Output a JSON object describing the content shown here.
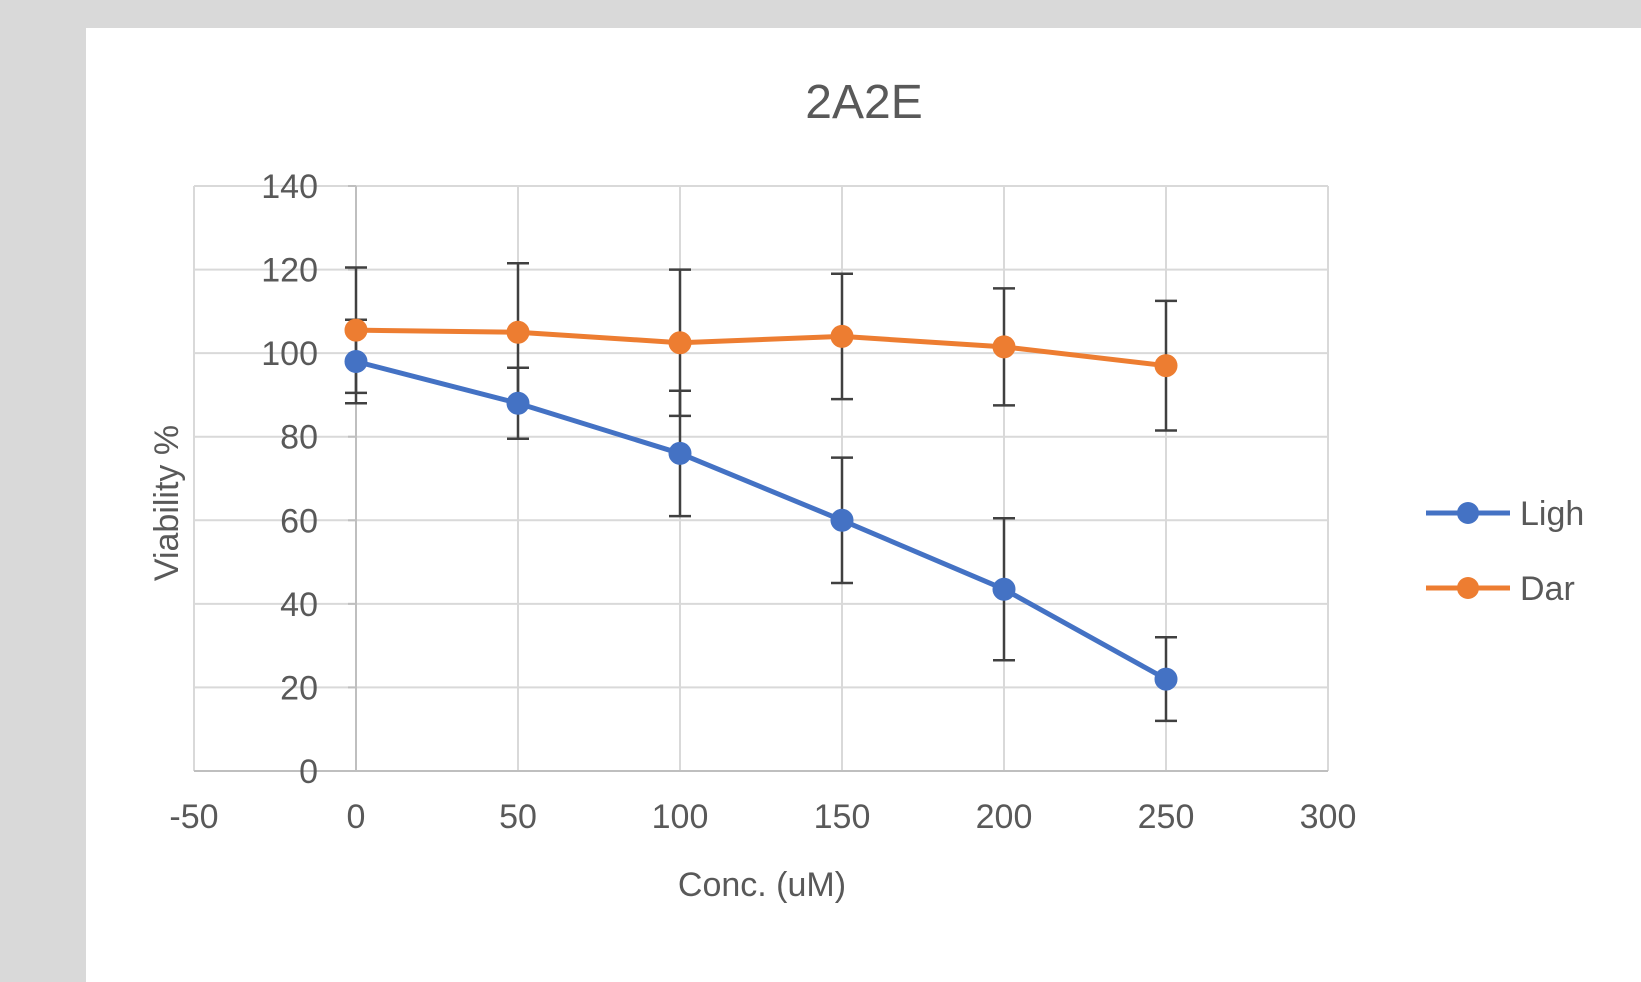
{
  "colors": {
    "series_light": "#4472c4",
    "series_dark": "#ed7d31",
    "grid": "#d9d9d9",
    "axis": "#bfbfbf",
    "error_bar": "#404040",
    "text": "#595959",
    "page_bg": "#d9d9d9",
    "chart_bg": "#ffffff"
  },
  "chart_data": {
    "type": "scatter",
    "title": "2A2E",
    "xlabel": "Conc. (uM)",
    "ylabel": "Viability %",
    "xlim": [
      -50,
      300
    ],
    "ylim": [
      0,
      140
    ],
    "xticks": [
      "-50",
      "0",
      "50",
      "100",
      "150",
      "200",
      "250",
      "300"
    ],
    "yticks": [
      "0",
      "20",
      "40",
      "60",
      "80",
      "100",
      "120",
      "140"
    ],
    "grid": true,
    "legend_position": "right",
    "series": [
      {
        "name": "Ligh",
        "color": "#4472c4",
        "points": [
          {
            "x": 0,
            "y": 98,
            "err": 10
          },
          {
            "x": 50,
            "y": 88,
            "err": 8.5
          },
          {
            "x": 100,
            "y": 76,
            "err": 15
          },
          {
            "x": 150,
            "y": 60,
            "err": 15
          },
          {
            "x": 200,
            "y": 43.5,
            "err": 17
          },
          {
            "x": 250,
            "y": 22,
            "err": 10
          }
        ]
      },
      {
        "name": "Dar",
        "color": "#ed7d31",
        "points": [
          {
            "x": 0,
            "y": 105.5,
            "err": 15
          },
          {
            "x": 50,
            "y": 105,
            "err": 16.5
          },
          {
            "x": 100,
            "y": 102.5,
            "err": 17.5
          },
          {
            "x": 150,
            "y": 104,
            "err": 15
          },
          {
            "x": 200,
            "y": 101.5,
            "err": 14
          },
          {
            "x": 250,
            "y": 97,
            "err": 15.5
          }
        ]
      }
    ]
  }
}
